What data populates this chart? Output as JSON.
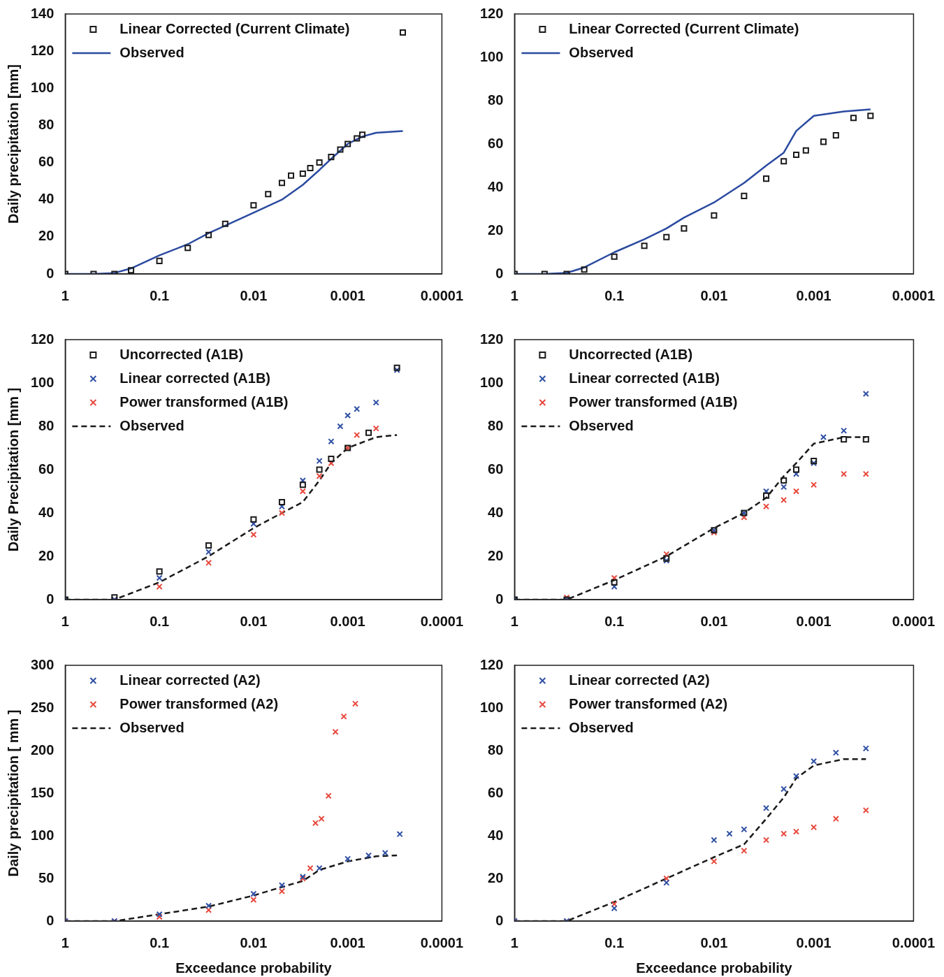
{
  "chart_data": [
    {
      "type": "scatter",
      "ylabel": "Daily precipitation [mm]",
      "log": "x",
      "grid": false,
      "legend": "top left",
      "xlim": [
        1,
        0.0001
      ],
      "xticks": [
        1,
        0.1,
        0.01,
        0.001,
        0.0001
      ],
      "ylim": [
        0,
        140
      ],
      "yticks": [
        0,
        20,
        40,
        60,
        80,
        100,
        120,
        140
      ],
      "series": [
        {
          "name": "Linear Corrected (Current Climate)",
          "color": "#1a1a1a",
          "marker": "square",
          "x": [
            1,
            0.5,
            0.3,
            0.2,
            0.1,
            0.05,
            0.03,
            0.02,
            0.01,
            0.007,
            0.005,
            0.004,
            0.003,
            0.0025,
            0.002,
            0.0015,
            0.0012,
            0.001,
            0.0008,
            0.0007,
            0.00026
          ],
          "values": [
            0,
            0,
            0,
            2,
            7,
            14,
            21,
            27,
            37,
            43,
            49,
            53,
            54,
            57,
            60,
            63,
            67,
            70,
            73,
            75,
            130
          ]
        },
        {
          "name": "Observed",
          "type": "line",
          "color": "#2a4aa0",
          "marker": "none",
          "line_style": "solid",
          "x": [
            1,
            0.5,
            0.3,
            0.2,
            0.1,
            0.05,
            0.03,
            0.02,
            0.01,
            0.005,
            0.003,
            0.002,
            0.0015,
            0.001,
            0.0007,
            0.0005,
            0.00026
          ],
          "values": [
            0,
            0,
            0.5,
            3,
            10,
            16,
            22,
            26,
            33,
            40,
            48,
            56,
            62,
            70,
            74,
            76,
            77
          ]
        }
      ]
    },
    {
      "type": "scatter",
      "log": "x",
      "grid": false,
      "legend": "top left",
      "xlim": [
        1,
        0.0001
      ],
      "xticks": [
        1,
        0.1,
        0.01,
        0.001,
        0.0001
      ],
      "ylim": [
        0,
        120
      ],
      "yticks": [
        0,
        20,
        40,
        60,
        80,
        100,
        120
      ],
      "series": [
        {
          "name": "Linear Corrected (Current Climate)",
          "color": "#1a1a1a",
          "marker": "square",
          "x": [
            1,
            0.5,
            0.3,
            0.2,
            0.1,
            0.05,
            0.03,
            0.02,
            0.01,
            0.005,
            0.003,
            0.002,
            0.0015,
            0.0012,
            0.0008,
            0.0006,
            0.0004,
            0.00027
          ],
          "values": [
            0,
            0,
            0,
            2,
            8,
            13,
            17,
            21,
            27,
            36,
            44,
            52,
            55,
            57,
            61,
            64,
            72,
            73
          ]
        },
        {
          "name": "Observed",
          "type": "line",
          "color": "#2a4aa0",
          "marker": "none",
          "line_style": "solid",
          "x": [
            1,
            0.5,
            0.3,
            0.2,
            0.1,
            0.05,
            0.03,
            0.02,
            0.01,
            0.005,
            0.003,
            0.002,
            0.0015,
            0.001,
            0.0005,
            0.00027
          ],
          "values": [
            0,
            0,
            0.5,
            3,
            10,
            16,
            21,
            26,
            33,
            42,
            50,
            56,
            66,
            73,
            75,
            76
          ]
        }
      ]
    },
    {
      "type": "scatter",
      "ylabel": "Daily Precipitation [mm ]",
      "log": "x",
      "grid": false,
      "legend": "top left",
      "xlim": [
        1,
        0.0001
      ],
      "xticks": [
        1,
        0.1,
        0.01,
        0.001,
        0.0001
      ],
      "ylim": [
        0,
        120
      ],
      "yticks": [
        0,
        20,
        40,
        60,
        80,
        100,
        120
      ],
      "series": [
        {
          "name": "Uncorrected (A1B)",
          "color": "#1a1a1a",
          "marker": "square",
          "x": [
            1,
            0.3,
            0.1,
            0.03,
            0.01,
            0.005,
            0.003,
            0.002,
            0.0015,
            0.001,
            0.0006,
            0.0003
          ],
          "values": [
            0,
            1,
            13,
            25,
            37,
            45,
            53,
            60,
            65,
            70,
            77,
            107
          ]
        },
        {
          "name": "Linear corrected (A1B)",
          "color": "#2e4fa3",
          "marker": "cross",
          "x": [
            1,
            0.3,
            0.1,
            0.03,
            0.01,
            0.005,
            0.003,
            0.002,
            0.0015,
            0.0012,
            0.001,
            0.0008,
            0.0005,
            0.0003
          ],
          "values": [
            0,
            0,
            10,
            22,
            35,
            43,
            55,
            64,
            73,
            80,
            85,
            88,
            91,
            106
          ]
        },
        {
          "name": "Power transformed (A1B)",
          "color": "#e8483c",
          "marker": "cross",
          "x": [
            1,
            0.3,
            0.1,
            0.03,
            0.01,
            0.005,
            0.003,
            0.002,
            0.0015,
            0.001,
            0.0008,
            0.0005
          ],
          "values": [
            0,
            0,
            6,
            17,
            30,
            40,
            50,
            57,
            63,
            70,
            76,
            79
          ]
        },
        {
          "name": "Observed",
          "type": "line",
          "color": "#1a1a1a",
          "marker": "none",
          "line_style": "dashed",
          "x": [
            1,
            0.3,
            0.1,
            0.03,
            0.01,
            0.005,
            0.003,
            0.002,
            0.0015,
            0.001,
            0.0005,
            0.0003
          ],
          "values": [
            0,
            0,
            8,
            20,
            33,
            40,
            45,
            55,
            63,
            70,
            75,
            76
          ]
        }
      ]
    },
    {
      "type": "scatter",
      "log": "x",
      "grid": false,
      "legend": "top left",
      "xlim": [
        1,
        0.0001
      ],
      "xticks": [
        1,
        0.1,
        0.01,
        0.001,
        0.0001
      ],
      "ylim": [
        0,
        120
      ],
      "yticks": [
        0,
        20,
        40,
        60,
        80,
        100,
        120
      ],
      "series": [
        {
          "name": "Uncorrected (A1B)",
          "color": "#1a1a1a",
          "marker": "square",
          "x": [
            1,
            0.3,
            0.1,
            0.03,
            0.01,
            0.005,
            0.003,
            0.002,
            0.0015,
            0.001,
            0.0005,
            0.0003
          ],
          "values": [
            0,
            0,
            8,
            19,
            32,
            40,
            48,
            55,
            60,
            64,
            74,
            74
          ]
        },
        {
          "name": "Linear corrected (A1B)",
          "color": "#2e4fa3",
          "marker": "cross",
          "x": [
            1,
            0.3,
            0.1,
            0.03,
            0.01,
            0.005,
            0.003,
            0.002,
            0.0015,
            0.001,
            0.0008,
            0.0005,
            0.0003
          ],
          "values": [
            0,
            0,
            6,
            18,
            32,
            40,
            50,
            52,
            58,
            63,
            75,
            78,
            95
          ]
        },
        {
          "name": "Power transformed (A1B)",
          "color": "#e8483c",
          "marker": "cross",
          "x": [
            1,
            0.3,
            0.1,
            0.03,
            0.01,
            0.005,
            0.003,
            0.002,
            0.0015,
            0.001,
            0.0005,
            0.0003
          ],
          "values": [
            0,
            1,
            10,
            21,
            31,
            38,
            43,
            46,
            50,
            53,
            58,
            58
          ]
        },
        {
          "name": "Observed",
          "type": "line",
          "color": "#1a1a1a",
          "marker": "none",
          "line_style": "dashed",
          "x": [
            1,
            0.3,
            0.1,
            0.03,
            0.01,
            0.005,
            0.003,
            0.002,
            0.0015,
            0.001,
            0.0005,
            0.0003
          ],
          "values": [
            0,
            0,
            9,
            20,
            33,
            40,
            47,
            57,
            63,
            72,
            75,
            75
          ]
        }
      ]
    },
    {
      "type": "scatter",
      "ylabel": "Daily precipitation [ mm ]",
      "xlabel": "Exceedance probability",
      "log": "x",
      "grid": false,
      "legend": "top left",
      "xlim": [
        1,
        0.0001
      ],
      "xticks": [
        1,
        0.1,
        0.01,
        0.001,
        0.0001
      ],
      "ylim": [
        0,
        300
      ],
      "yticks": [
        0,
        50,
        100,
        150,
        200,
        250,
        300
      ],
      "series": [
        {
          "name": "Linear corrected (A2)",
          "color": "#2e4fa3",
          "marker": "cross",
          "x": [
            1,
            0.3,
            0.1,
            0.03,
            0.01,
            0.005,
            0.003,
            0.002,
            0.001,
            0.0006,
            0.0004,
            0.00028
          ],
          "values": [
            0,
            0,
            8,
            18,
            32,
            42,
            52,
            62,
            73,
            77,
            80,
            102
          ]
        },
        {
          "name": "Power transformed (A2)",
          "color": "#e8483c",
          "marker": "cross",
          "x": [
            1,
            0.3,
            0.1,
            0.03,
            0.01,
            0.005,
            0.003,
            0.0025,
            0.0022,
            0.0019,
            0.0016,
            0.00135,
            0.0011,
            0.00083
          ],
          "values": [
            0,
            0,
            5,
            13,
            25,
            35,
            50,
            62,
            115,
            120,
            147,
            222,
            240,
            255
          ]
        },
        {
          "name": "Observed",
          "type": "line",
          "color": "#1a1a1a",
          "marker": "none",
          "line_style": "dashed",
          "x": [
            1,
            0.3,
            0.1,
            0.03,
            0.01,
            0.005,
            0.003,
            0.002,
            0.001,
            0.0005,
            0.0003
          ],
          "values": [
            0,
            0,
            8,
            17,
            30,
            40,
            47,
            60,
            70,
            76,
            77
          ]
        }
      ]
    },
    {
      "type": "scatter",
      "xlabel": "Exceedance probability",
      "log": "x",
      "grid": false,
      "legend": "top left",
      "xlim": [
        1,
        0.0001
      ],
      "xticks": [
        1,
        0.1,
        0.01,
        0.001,
        0.0001
      ],
      "ylim": [
        0,
        120
      ],
      "yticks": [
        0,
        20,
        40,
        60,
        80,
        100,
        120
      ],
      "series": [
        {
          "name": "Linear corrected (A2)",
          "color": "#2e4fa3",
          "marker": "cross",
          "x": [
            1,
            0.3,
            0.1,
            0.03,
            0.01,
            0.007,
            0.005,
            0.003,
            0.002,
            0.0015,
            0.001,
            0.0006,
            0.0003
          ],
          "values": [
            0,
            0,
            6,
            18,
            38,
            41,
            43,
            53,
            62,
            68,
            75,
            79,
            81
          ]
        },
        {
          "name": "Power transformed (A2)",
          "color": "#e8483c",
          "marker": "cross",
          "x": [
            1,
            0.3,
            0.1,
            0.03,
            0.01,
            0.005,
            0.003,
            0.002,
            0.0015,
            0.001,
            0.0006,
            0.0003
          ],
          "values": [
            0,
            0,
            8,
            20,
            28,
            33,
            38,
            41,
            42,
            44,
            48,
            52
          ]
        },
        {
          "name": "Observed",
          "type": "line",
          "color": "#1a1a1a",
          "marker": "none",
          "line_style": "dashed",
          "x": [
            1,
            0.3,
            0.1,
            0.03,
            0.01,
            0.005,
            0.003,
            0.002,
            0.0015,
            0.001,
            0.0005,
            0.0003
          ],
          "values": [
            0,
            0,
            9,
            20,
            30,
            36,
            48,
            58,
            67,
            73,
            76,
            76
          ]
        }
      ]
    }
  ]
}
